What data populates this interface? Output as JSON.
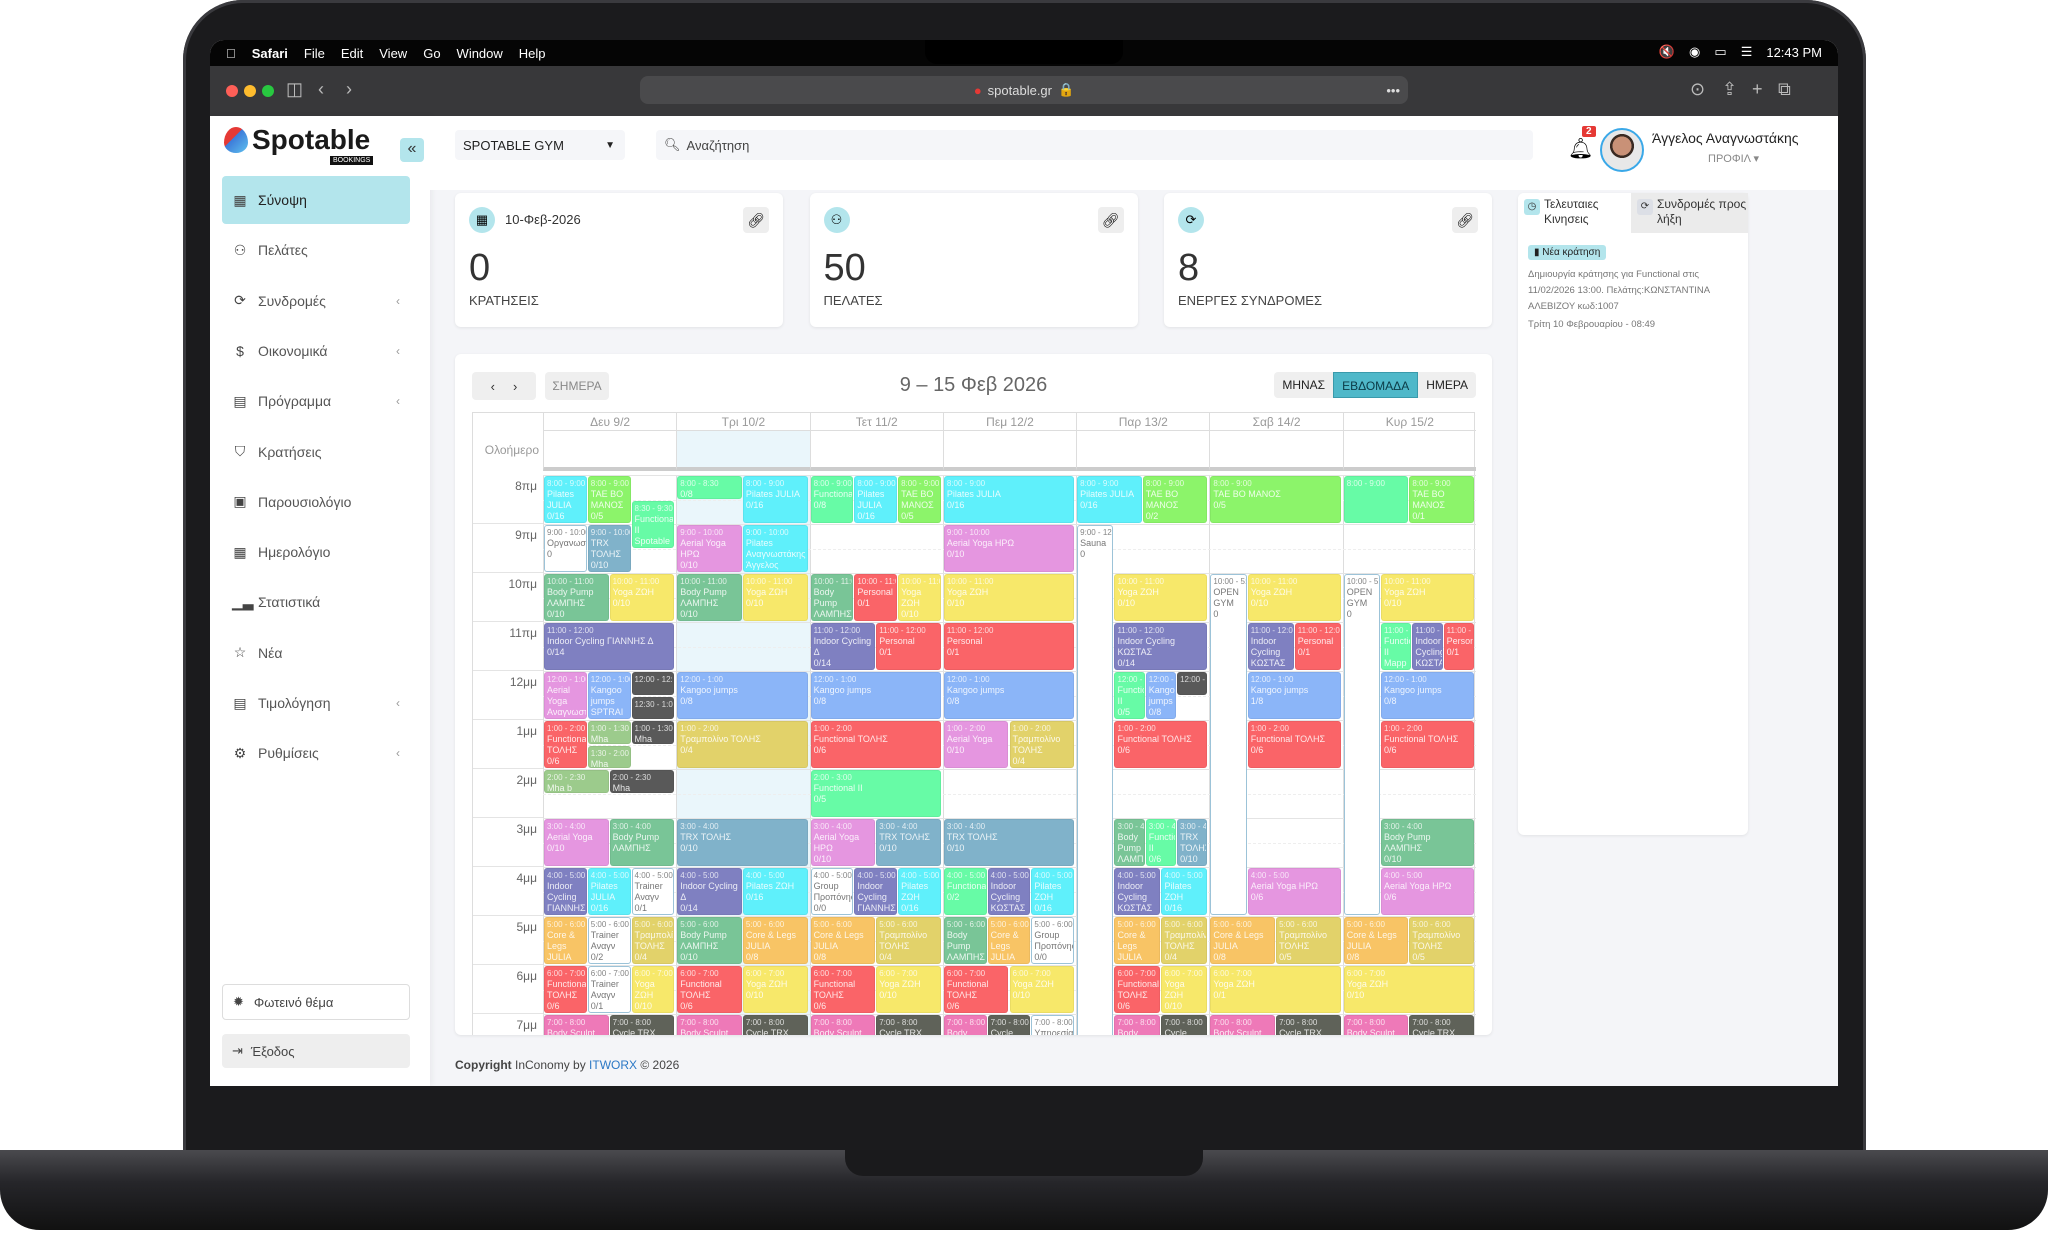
{
  "mac": {
    "apple": "",
    "app": "Safari",
    "menus": [
      "File",
      "Edit",
      "View",
      "Go",
      "Window",
      "Help"
    ],
    "clock": "12:43 PM"
  },
  "browser": {
    "url": "spotable.gr"
  },
  "brand": {
    "name": "Spotable",
    "sub": "BOOKINGS",
    "collapse": "«"
  },
  "sidebar": {
    "items": [
      {
        "label": "Σύνοψη",
        "icon": "grid-icon",
        "glyph": "▦",
        "active": true
      },
      {
        "label": "Πελάτες",
        "icon": "users-icon",
        "glyph": "⚇"
      },
      {
        "label": "Συνδρομές",
        "icon": "refresh-icon",
        "glyph": "⟳",
        "chevron": true
      },
      {
        "label": "Οικονομικά",
        "icon": "dollar-icon",
        "glyph": "$",
        "chevron": true
      },
      {
        "label": "Πρόγραμμα",
        "icon": "table-icon",
        "glyph": "▤",
        "chevron": true
      },
      {
        "label": "Κρατήσεις",
        "icon": "bookmark-icon",
        "glyph": "⛉"
      },
      {
        "label": "Παρουσιολόγιο",
        "icon": "clipboard-icon",
        "glyph": "▣"
      },
      {
        "label": "Ημερολόγιο",
        "icon": "calendar-icon",
        "glyph": "▦"
      },
      {
        "label": "Στατιστικά",
        "icon": "bar-chart-icon",
        "glyph": "▁▃"
      },
      {
        "label": "Νέα",
        "icon": "star-icon",
        "glyph": "☆"
      },
      {
        "label": "Τιμολόγηση",
        "icon": "invoice-icon",
        "glyph": "▤",
        "chevron": true
      },
      {
        "label": "Ρυθμίσεις",
        "icon": "gear-icon",
        "glyph": "⚙",
        "chevron": true
      }
    ],
    "theme": "Φωτεινό θέμα",
    "logout": "Έξοδος"
  },
  "header": {
    "gym": "SPOTABLE GYM",
    "search_placeholder": "Αναζήτηση",
    "notifications": "2",
    "user": "Άγγελος Αναγνωστάκης",
    "profile": "ΠΡΟΦΙΛ"
  },
  "stats": [
    {
      "date": "10-Φεβ-2026",
      "value": "0",
      "label": "ΚΡΑΤΗΣΕΙΣ",
      "icon": "calendar-icon",
      "glyph": "▦"
    },
    {
      "date": "",
      "value": "50",
      "label": "ΠΕΛΑΤΕΣ",
      "icon": "users-icon",
      "glyph": "⚇"
    },
    {
      "date": "",
      "value": "8",
      "label": "ΕΝΕΡΓΕΣ ΣΥΝΔΡΟΜΕΣ",
      "icon": "refresh-icon",
      "glyph": "⟳"
    }
  ],
  "calendar": {
    "title": "9 – 15 Φεβ 2026",
    "today": "ΣΗΜΕΡΑ",
    "views": [
      "ΜΗΝΑΣ",
      "ΕΒΔΟΜΑΔΑ",
      "ΗΜΕΡΑ"
    ],
    "active_view": "ΕΒΔΟΜΑΔΑ",
    "allday": "Ολοήμερο",
    "today_index": 1,
    "days": [
      "Δευ 9/2",
      "Τρι 10/2",
      "Τετ 11/2",
      "Πεμ 12/2",
      "Παρ 13/2",
      "Σαβ 14/2",
      "Κυρ 15/2"
    ],
    "hours": [
      "8πμ",
      "9πμ",
      "10πμ",
      "11πμ",
      "12μμ",
      "1μμ",
      "2μμ",
      "3μμ",
      "4μμ",
      "5μμ",
      "6μμ",
      "7μμ"
    ],
    "colors": {
      "cyan": "#5ff0fb",
      "lime": "#8cf46a",
      "mint": "#67fba6",
      "steel": "#80b2ca",
      "mauve": "#e596e0",
      "green": "#79c597",
      "yellow": "#f7e86a",
      "purple": "#7f80c1",
      "red": "#fa6468",
      "blue": "#8bb5f8",
      "olive": "#e2d26a",
      "dark": "#595959",
      "sage": "#9ccb8c",
      "orange": "#f8c465",
      "pink": "#ee79b8",
      "grey": "#5f6259",
      "white": "#ffffff"
    },
    "events": [
      [
        [
          8,
          9,
          "Pilates JULIA",
          "0/16",
          "cyan"
        ],
        [
          8,
          9,
          "TAE BO ΜΑΝΟΣ",
          "0/5",
          "lime"
        ],
        [
          8.5,
          9.5,
          "Functional II Spotable",
          "",
          "mint"
        ],
        [
          9,
          10,
          "Οργανωση",
          "0",
          "white"
        ],
        [
          9,
          10,
          "TRX ΤΟΛΗΣ",
          "0/10",
          "steel"
        ],
        [
          10,
          11,
          "Body Pump ΛΑΜΠΗΣ",
          "0/10",
          "green"
        ],
        [
          10,
          11,
          "Yoga ΖΩΗ",
          "0/10",
          "yellow"
        ],
        [
          11,
          12,
          "Indoor Cycling ΓΙΑΝΝΗΣ Δ",
          "0/14",
          "purple"
        ],
        [
          12,
          13,
          "Aerial Yoga Αναγνωστάκης",
          "",
          "mauve"
        ],
        [
          12,
          13,
          "Kangoo jumps SPTRAI",
          "",
          "blue"
        ],
        [
          12,
          12.5,
          "",
          "",
          "dark"
        ],
        [
          12.5,
          13,
          "",
          "",
          "dark"
        ],
        [
          13,
          14,
          "Functional ΤΟΛΗΣ",
          "0/6",
          "red"
        ],
        [
          13,
          13.5,
          "Mha",
          "0/..",
          "sage"
        ],
        [
          13.5,
          14,
          "Mha body",
          "0/2",
          "sage"
        ],
        [
          13,
          13.5,
          "Mha",
          "",
          "dark"
        ],
        [
          14,
          14.5,
          "Mha b",
          "0/2",
          "sage"
        ],
        [
          14,
          14.5,
          "Mha",
          "0/1",
          "dark"
        ],
        [
          15,
          16,
          "Aerial Yoga",
          "0/10",
          "mauve"
        ],
        [
          15,
          16,
          "Body Pump ΛΑΜΠΗΣ",
          "",
          "green"
        ],
        [
          16,
          17,
          "Indoor Cycling ΓΙΑΝΝΗΣ",
          "",
          "purple"
        ],
        [
          16,
          17,
          "Pilates JULIA",
          "0/16",
          "cyan"
        ],
        [
          16,
          17,
          "Trainer Αναγν",
          "0/1",
          "white"
        ],
        [
          17,
          18,
          "Core & Legs JULIA",
          "",
          "orange"
        ],
        [
          17,
          18,
          "Trainer Αναγν",
          "0/2",
          "white"
        ],
        [
          17,
          18,
          "Τραμπολίνο ΤΟΛΗΣ",
          "0/4",
          "olive"
        ],
        [
          18,
          19,
          "Functional ΤΟΛΗΣ",
          "0/6",
          "red"
        ],
        [
          18,
          19,
          "Trainer Αναγν",
          "0/1",
          "white"
        ],
        [
          18,
          19,
          "Yoga ΖΩΗ",
          "0/10",
          "yellow"
        ],
        [
          19,
          20,
          "Body Sculpt ΖΩΗ",
          "",
          "pink"
        ],
        [
          19,
          20,
          "Cycle TRX",
          "",
          "grey"
        ]
      ],
      [
        [
          8,
          8.5,
          "",
          "0/8",
          "mint"
        ],
        [
          8,
          9,
          "Pilates JULIA",
          "0/16",
          "cyan"
        ],
        [
          9,
          10,
          "Aerial Yoga HPΩ",
          "0/10",
          "mauve"
        ],
        [
          9,
          10,
          "Pilates Αναγνωστάκης Άγγελος",
          "",
          "cyan"
        ],
        [
          10,
          11,
          "Body Pump ΛΑΜΠΗΣ",
          "0/10",
          "green"
        ],
        [
          10,
          11,
          "Yoga ΖΩΗ",
          "0/10",
          "yellow"
        ],
        [
          12,
          13,
          "Kangoo jumps",
          "0/8",
          "blue"
        ],
        [
          13,
          14,
          "Τραμπολίνο ΤΟΛΗΣ",
          "0/4",
          "olive"
        ],
        [
          15,
          16,
          "TRX ΤΟΛΗΣ",
          "0/10",
          "steel"
        ],
        [
          16,
          17,
          "Indoor Cycling Δ",
          "0/14",
          "purple"
        ],
        [
          16,
          17,
          "Pilates ΖΩΗ",
          "0/16",
          "cyan"
        ],
        [
          17,
          18,
          "Body Pump ΛΑΜΠΗΣ",
          "0/10",
          "green"
        ],
        [
          17,
          18,
          "Core & Legs JULIA",
          "0/8",
          "orange"
        ],
        [
          18,
          19,
          "Functional ΤΟΛΗΣ",
          "0/6",
          "red"
        ],
        [
          18,
          19,
          "Yoga ΖΩΗ",
          "0/10",
          "yellow"
        ],
        [
          19,
          20,
          "Body Sculpt ΖΩΗ",
          "",
          "pink"
        ],
        [
          19,
          20,
          "Cycle TRX",
          "",
          "grey"
        ]
      ],
      [
        [
          8,
          9,
          "Functional",
          "0/8",
          "mint"
        ],
        [
          8,
          9,
          "Pilates JULIA",
          "0/16",
          "cyan"
        ],
        [
          8,
          9,
          "TAE BO ΜΑΝΟΣ",
          "0/5",
          "lime"
        ],
        [
          10,
          11,
          "Body Pump ΛΑΜΠΗΣ",
          "0/10",
          "green"
        ],
        [
          10,
          11,
          "Personal",
          "0/1",
          "red"
        ],
        [
          10,
          11,
          "Yoga ΖΩΗ",
          "0/10",
          "yellow"
        ],
        [
          11,
          12,
          "Indoor Cycling Δ",
          "0/14",
          "purple"
        ],
        [
          11,
          12,
          "Personal",
          "0/1",
          "red"
        ],
        [
          12,
          13,
          "Kangoo jumps",
          "0/8",
          "blue"
        ],
        [
          13,
          14,
          "Functional ΤΟΛΗΣ",
          "0/6",
          "red"
        ],
        [
          14,
          15,
          "Functional II",
          "0/5",
          "mint"
        ],
        [
          15,
          16,
          "Aerial Yoga HPΩ",
          "0/10",
          "mauve"
        ],
        [
          15,
          16,
          "TRX ΤΟΛΗΣ",
          "0/10",
          "steel"
        ],
        [
          16,
          17,
          "Group Προπόνηση",
          "0/0",
          "white"
        ],
        [
          16,
          17,
          "Indoor Cycling ΓΙΑΝΝΗΣ Δ",
          "0/14",
          "purple"
        ],
        [
          16,
          17,
          "Pilates ΖΩΗ",
          "0/16",
          "cyan"
        ],
        [
          17,
          18,
          "Core & Legs JULIA",
          "0/8",
          "orange"
        ],
        [
          17,
          18,
          "Τραμπολίνο ΤΟΛΗΣ",
          "0/4",
          "olive"
        ],
        [
          18,
          19,
          "Functional ΤΟΛΗΣ",
          "0/6",
          "red"
        ],
        [
          18,
          19,
          "Yoga ΖΩΗ",
          "0/10",
          "yellow"
        ],
        [
          19,
          20,
          "Body Sculpt ΖΩΗ",
          "",
          "pink"
        ],
        [
          19,
          20,
          "Cycle TRX",
          "",
          "grey"
        ]
      ],
      [
        [
          8,
          9,
          "Pilates JULIA",
          "0/16",
          "cyan"
        ],
        [
          9,
          10,
          "Aerial Yoga HPΩ",
          "0/10",
          "mauve"
        ],
        [
          10,
          11,
          "Yoga ΖΩΗ",
          "0/10",
          "yellow"
        ],
        [
          11,
          12,
          "Personal",
          "0/1",
          "red"
        ],
        [
          12,
          13,
          "Kangoo jumps",
          "0/8",
          "blue"
        ],
        [
          13,
          14,
          "Aerial Yoga",
          "0/10",
          "mauve"
        ],
        [
          13,
          14,
          "Τραμπολίνο ΤΟΛΗΣ",
          "0/4",
          "olive"
        ],
        [
          15,
          16,
          "TRX ΤΟΛΗΣ",
          "0/10",
          "steel"
        ],
        [
          16,
          17,
          "Functional",
          "0/2",
          "mint"
        ],
        [
          16,
          17,
          "Indoor Cycling ΚΩΣΤΑΣ",
          "0/14",
          "purple"
        ],
        [
          16,
          17,
          "Pilates ΖΩΗ",
          "0/16",
          "cyan"
        ],
        [
          17,
          18,
          "Body Pump ΛΑΜΠΗΣ",
          "0/10",
          "green"
        ],
        [
          17,
          18,
          "Core & Legs JULIA",
          "0/8",
          "orange"
        ],
        [
          17,
          18,
          "Group Προπόνηση",
          "0/0",
          "white"
        ],
        [
          18,
          19,
          "Functional ΤΟΛΗΣ",
          "0/6",
          "red"
        ],
        [
          18,
          19,
          "Yoga ΖΩΗ",
          "0/10",
          "yellow"
        ],
        [
          19,
          20,
          "Body Sculpt",
          "",
          "pink"
        ],
        [
          19,
          20,
          "Cycle TRX",
          "",
          "grey"
        ],
        [
          19,
          20,
          "Υπηρεσία",
          "",
          "white"
        ]
      ],
      [
        [
          8,
          9,
          "Pilates JULIA",
          "0/16",
          "cyan"
        ],
        [
          8,
          9,
          "TAE BO ΜΑΝΟΣ",
          "0/2",
          "lime"
        ],
        [
          9,
          24,
          "Sauna",
          "0",
          "white",
          "bg"
        ],
        [
          10,
          11,
          "Yoga ΖΩΗ",
          "0/10",
          "yellow"
        ],
        [
          11,
          12,
          "Indoor Cycling ΚΩΣΤΑΣ",
          "0/14",
          "purple"
        ],
        [
          12,
          13,
          "Functional II",
          "0/5",
          "mint"
        ],
        [
          12,
          13,
          "Kangoo jumps",
          "0/8",
          "blue"
        ],
        [
          12,
          12.5,
          "",
          "",
          "dark"
        ],
        [
          13,
          14,
          "Functional ΤΟΛΗΣ",
          "0/6",
          "red"
        ],
        [
          15,
          16,
          "Body Pump ΛΑΜΠΗΣ",
          "",
          "green"
        ],
        [
          15,
          16,
          "Functional II",
          "0/6",
          "mint"
        ],
        [
          15,
          16,
          "TRX ΤΟΛΗΣ",
          "0/10",
          "steel"
        ],
        [
          16,
          17,
          "Indoor Cycling ΚΩΣΤΑΣ",
          "0/14",
          "purple"
        ],
        [
          16,
          17,
          "Pilates ΖΩΗ",
          "0/16",
          "cyan"
        ],
        [
          17,
          18,
          "Core & Legs JULIA",
          "0/8",
          "orange"
        ],
        [
          17,
          18,
          "Τραμπολίνο ΤΟΛΗΣ",
          "0/4",
          "olive"
        ],
        [
          18,
          19,
          "Functional ΤΟΛΗΣ",
          "0/6",
          "red"
        ],
        [
          18,
          19,
          "Yoga ΖΩΗ",
          "0/10",
          "yellow"
        ],
        [
          19,
          20,
          "Body Sculpt",
          "",
          "pink"
        ],
        [
          19,
          20,
          "Cycle TRX",
          "",
          "grey"
        ]
      ],
      [
        [
          8,
          9,
          "TAE BO ΜΑΝΟΣ",
          "0/5",
          "lime"
        ],
        [
          10,
          17,
          "OPEN GYM",
          "0",
          "white",
          "bg"
        ],
        [
          10,
          11,
          "Yoga ΖΩΗ",
          "0/10",
          "yellow"
        ],
        [
          11,
          12,
          "Indoor Cycling ΚΩΣΤΑΣ",
          "0/14",
          "purple"
        ],
        [
          11,
          12,
          "Personal",
          "0/1",
          "red"
        ],
        [
          12,
          13,
          "Kangoo jumps",
          "1/8",
          "blue"
        ],
        [
          13,
          14,
          "Functional ΤΟΛΗΣ",
          "0/6",
          "red"
        ],
        [
          16,
          17,
          "Aerial Yoga HPΩ",
          "0/6",
          "mauve"
        ],
        [
          17,
          18,
          "Core & Legs JULIA",
          "0/8",
          "orange"
        ],
        [
          17,
          18,
          "Τραμπολίνο ΤΟΛΗΣ",
          "0/5",
          "olive"
        ],
        [
          18,
          19,
          "Yoga ΖΩΗ",
          "0/1",
          "yellow"
        ],
        [
          19,
          20,
          "Body Sculpt ΖΩΗ",
          "",
          "pink"
        ],
        [
          19,
          20,
          "Cycle TRX",
          "",
          "grey"
        ]
      ],
      [
        [
          8,
          9,
          "",
          "",
          "mint"
        ],
        [
          8,
          9,
          "TAE BO ΜΑΝΟΣ",
          "0/1",
          "lime"
        ],
        [
          10,
          17,
          "OPEN GYM",
          "0",
          "white",
          "bg"
        ],
        [
          10,
          11,
          "Yoga ΖΩΗ",
          "0/10",
          "yellow"
        ],
        [
          11,
          12,
          "Functional II Mapp Giorgos",
          "",
          "mint"
        ],
        [
          11,
          12,
          "Indoor Cycling ΚΩΣΤΑΣ",
          "",
          "purple"
        ],
        [
          11,
          12,
          "Personal",
          "0/1",
          "red"
        ],
        [
          12,
          13,
          "Kangoo jumps",
          "0/8",
          "blue"
        ],
        [
          13,
          14,
          "Functional ΤΟΛΗΣ",
          "0/6",
          "red"
        ],
        [
          15,
          16,
          "Body Pump ΛΑΜΠΗΣ",
          "0/10",
          "green"
        ],
        [
          16,
          17,
          "Aerial Yoga HPΩ",
          "0/6",
          "mauve"
        ],
        [
          17,
          18,
          "Core & Legs JULIA",
          "0/8",
          "orange"
        ],
        [
          17,
          18,
          "Τραμπολίνο ΤΟΛΗΣ",
          "0/5",
          "olive"
        ],
        [
          18,
          19,
          "Yoga ΖΩΗ",
          "0/10",
          "yellow"
        ],
        [
          19,
          20,
          "Body Sculpt ΖΩΗ",
          "",
          "pink"
        ],
        [
          19,
          20,
          "Cycle TRX",
          "",
          "grey"
        ]
      ]
    ]
  },
  "activity": {
    "tab1": "Τελευταιες Κινησεις",
    "tab2": "Συνδρομές προς λήξη",
    "badge": "Νέα κράτηση",
    "text": "Δημιουργία κράτησης για Functional στις 11/02/2026 13:00. Πελάτης:ΚΩΝΣΤΑΝΤΙΝΑ ΑΛΕΒΙΖΟΥ κωδ:1007",
    "time": "Τρίτη 10 Φεβρουαρίου -   08:49"
  },
  "footer": {
    "prefix": "Copyright",
    "mid": " InConomy by ",
    "link": "ITWORX",
    "suffix": " © 2026"
  }
}
